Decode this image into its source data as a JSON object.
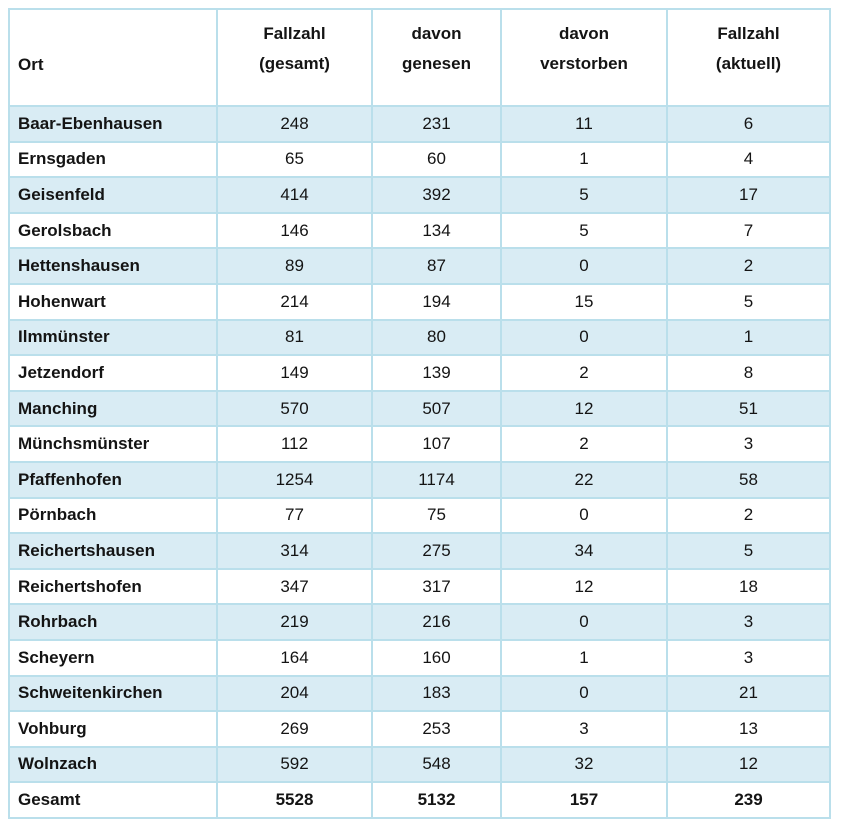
{
  "table": {
    "name": "covid-cases-by-municipality",
    "columns": [
      {
        "id": "ort",
        "line1": "Ort",
        "line2": ""
      },
      {
        "id": "fallzahl-gesamt",
        "line1": "Fallzahl",
        "line2": "(gesamt)"
      },
      {
        "id": "davon-genesen",
        "line1": "davon",
        "line2": "genesen"
      },
      {
        "id": "davon-verstorben",
        "line1": "davon",
        "line2": "verstorben"
      },
      {
        "id": "fallzahl-aktuell",
        "line1": "Fallzahl",
        "line2": "(aktuell)"
      }
    ],
    "rows": [
      {
        "ort": "Baar-Ebenhausen",
        "values": [
          "248",
          "231",
          "11",
          "6"
        ]
      },
      {
        "ort": "Ernsgaden",
        "values": [
          "65",
          "60",
          "1",
          "4"
        ]
      },
      {
        "ort": "Geisenfeld",
        "values": [
          "414",
          "392",
          "5",
          "17"
        ]
      },
      {
        "ort": "Gerolsbach",
        "values": [
          "146",
          "134",
          "5",
          "7"
        ]
      },
      {
        "ort": "Hettenshausen",
        "values": [
          "89",
          "87",
          "0",
          "2"
        ]
      },
      {
        "ort": "Hohenwart",
        "values": [
          "214",
          "194",
          "15",
          "5"
        ]
      },
      {
        "ort": "Ilmmünster",
        "values": [
          "81",
          "80",
          "0",
          "1"
        ]
      },
      {
        "ort": "Jetzendorf",
        "values": [
          "149",
          "139",
          "2",
          "8"
        ]
      },
      {
        "ort": "Manching",
        "values": [
          "570",
          "507",
          "12",
          "51"
        ]
      },
      {
        "ort": "Münchsmünster",
        "values": [
          "112",
          "107",
          "2",
          "3"
        ]
      },
      {
        "ort": "Pfaffenhofen",
        "values": [
          "1254",
          "1174",
          "22",
          "58"
        ]
      },
      {
        "ort": "Pörnbach",
        "values": [
          "77",
          "75",
          "0",
          "2"
        ]
      },
      {
        "ort": "Reichertshausen",
        "values": [
          "314",
          "275",
          "34",
          "5"
        ]
      },
      {
        "ort": "Reichertshofen",
        "values": [
          "347",
          "317",
          "12",
          "18"
        ]
      },
      {
        "ort": "Rohrbach",
        "values": [
          "219",
          "216",
          "0",
          "3"
        ]
      },
      {
        "ort": "Scheyern",
        "values": [
          "164",
          "160",
          "1",
          "3"
        ]
      },
      {
        "ort": "Schweitenkirchen",
        "values": [
          "204",
          "183",
          "0",
          "21"
        ]
      },
      {
        "ort": "Vohburg",
        "values": [
          "269",
          "253",
          "3",
          "13"
        ]
      },
      {
        "ort": "Wolnzach",
        "values": [
          "592",
          "548",
          "32",
          "12"
        ]
      }
    ],
    "total_row": {
      "ort": "Gesamt",
      "values": [
        "5528",
        "5132",
        "157",
        "239"
      ]
    }
  },
  "colors": {
    "stripe_blue": "#d9ecf4",
    "border_blue": "#badfeb",
    "text": "#141414",
    "background": "#ffffff"
  }
}
